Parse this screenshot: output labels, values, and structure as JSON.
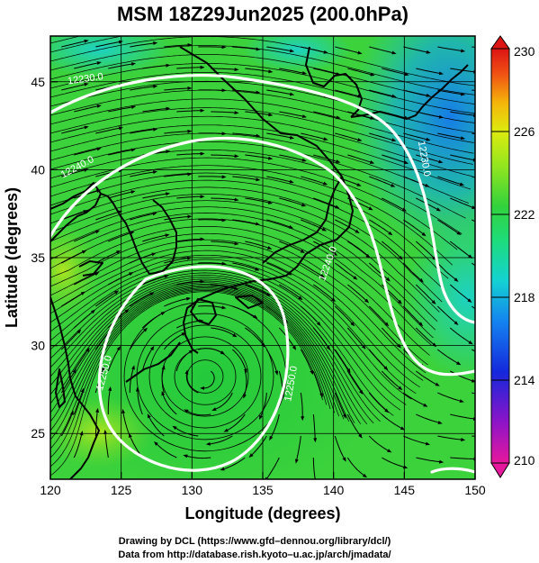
{
  "title": "MSM 18Z29Jun2025 (200.0hPa)",
  "chart_data": {
    "type": "heatmap",
    "variable_shading": "temperature (K) with streamlines",
    "xlabel": "Longitude (degrees)",
    "ylabel": "Latitude  (degrees)",
    "xlim": [
      120,
      150
    ],
    "ylim": [
      22.4,
      47.6
    ],
    "x_ticks": [
      "120",
      "125",
      "130",
      "135",
      "140",
      "145",
      "150"
    ],
    "y_ticks": [
      "25",
      "30",
      "35",
      "40",
      "45"
    ],
    "colorbar": {
      "min": 210,
      "max": 230,
      "ticks": [
        "230",
        "226",
        "222",
        "218",
        "214",
        "210"
      ],
      "colors": [
        "#e6189c",
        "#8c14c8",
        "#1428dc",
        "#1482f0",
        "#14d2d2",
        "#1edc78",
        "#32d23c",
        "#96e61e",
        "#dceb0f",
        "#f5b40a",
        "#f05014",
        "#dc1414"
      ]
    },
    "contours": [
      {
        "label": "12230.0",
        "lon": 122.5,
        "lat": 45.0
      },
      {
        "label": "12240.0",
        "lon": 122.0,
        "lat": 40.0
      },
      {
        "label": "12240.0",
        "lon": 139.8,
        "lat": 34.6
      },
      {
        "label": "12230.0",
        "lon": 146.2,
        "lat": 40.6
      },
      {
        "label": "12250.0",
        "lon": 124.0,
        "lat": 28.4
      },
      {
        "label": "12250.0",
        "lon": 137.2,
        "lat": 27.8
      }
    ]
  },
  "footer": {
    "line1": "Drawing by DCL (https://www.gfd–dennou.org/library/dcl/)",
    "line2": "Data from http://database.rish.kyoto–u.ac.jp/arch/jmadata/"
  }
}
